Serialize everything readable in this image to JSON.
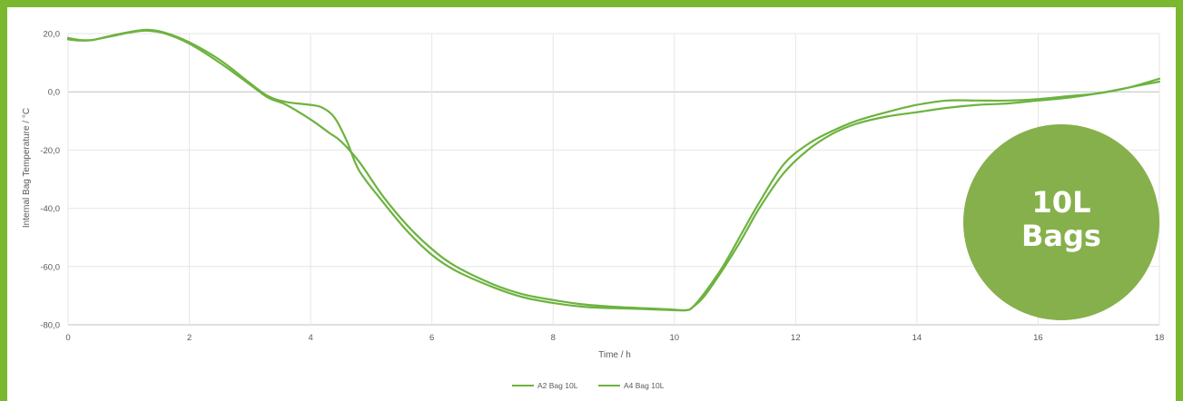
{
  "chart_data": {
    "type": "line",
    "title": "",
    "xlabel": "Time / h",
    "ylabel": "Internal Bag Temperature / °C",
    "xlim": [
      0,
      18
    ],
    "ylim": [
      -80,
      20
    ],
    "xticks": [
      0,
      2,
      4,
      6,
      8,
      10,
      12,
      14,
      16,
      18
    ],
    "xtick_labels": [
      "0",
      "2",
      "4",
      "6",
      "8",
      "10",
      "12",
      "14",
      "16",
      "18"
    ],
    "yticks": [
      20,
      0,
      -20,
      -40,
      -60,
      -80
    ],
    "ytick_labels": [
      "20,0",
      "0,0",
      "-20,0",
      "-40,0",
      "-60,0",
      "-80,0"
    ],
    "grid": true,
    "legend_position": "bottom-center",
    "line_color": "#6db33f",
    "series": [
      {
        "name": "A2 Bag 10L",
        "x": [
          0,
          0.2,
          0.4,
          0.7,
          1.0,
          1.3,
          1.6,
          2.0,
          2.5,
          3.0,
          3.3,
          3.6,
          4.0,
          4.3,
          4.5,
          4.8,
          5.2,
          5.6,
          6.0,
          6.4,
          7.0,
          7.5,
          8.0,
          8.5,
          9.0,
          9.5,
          10.0,
          10.2,
          10.3,
          10.5,
          10.8,
          11.1,
          11.4,
          11.8,
          12.2,
          12.6,
          13.0,
          13.5,
          14.0,
          14.5,
          15.0,
          15.5,
          16.0,
          16.5,
          17.0,
          17.5,
          18.0
        ],
        "y": [
          18.5,
          17.8,
          17.8,
          19.0,
          20.3,
          21.0,
          20.0,
          16.5,
          10.0,
          2.5,
          -2.0,
          -4.5,
          -9.5,
          -14.0,
          -17.0,
          -24.0,
          -36.0,
          -46.0,
          -54.0,
          -60.0,
          -66.0,
          -69.5,
          -71.5,
          -73.0,
          -73.8,
          -74.3,
          -74.8,
          -75.0,
          -74.0,
          -70.0,
          -61.0,
          -51.0,
          -40.0,
          -28.0,
          -20.0,
          -14.5,
          -11.0,
          -8.5,
          -7.0,
          -5.5,
          -4.5,
          -4.0,
          -3.0,
          -2.0,
          -0.5,
          1.5,
          3.5
        ]
      },
      {
        "name": "A4 Bag 10L",
        "x": [
          0,
          0.2,
          0.4,
          0.7,
          1.0,
          1.3,
          1.6,
          2.0,
          2.5,
          3.0,
          3.3,
          3.6,
          4.0,
          4.2,
          4.4,
          4.6,
          4.8,
          5.2,
          5.6,
          6.0,
          6.4,
          7.0,
          7.5,
          8.0,
          8.5,
          9.0,
          9.5,
          10.0,
          10.2,
          10.3,
          10.5,
          10.8,
          11.1,
          11.4,
          11.8,
          12.2,
          12.6,
          13.0,
          13.5,
          14.0,
          14.5,
          15.0,
          15.5,
          16.0,
          16.5,
          17.0,
          17.5,
          18.0
        ],
        "y": [
          18.0,
          17.6,
          17.8,
          19.2,
          20.5,
          21.3,
          20.3,
          17.0,
          11.0,
          3.0,
          -1.5,
          -3.5,
          -4.5,
          -5.5,
          -9.0,
          -17.0,
          -27.0,
          -38.0,
          -48.0,
          -56.0,
          -61.5,
          -67.0,
          -70.5,
          -72.5,
          -73.8,
          -74.3,
          -74.6,
          -75.0,
          -75.0,
          -74.0,
          -69.0,
          -60.0,
          -49.0,
          -38.0,
          -25.0,
          -18.0,
          -13.5,
          -10.0,
          -7.0,
          -4.5,
          -3.0,
          -3.0,
          -3.0,
          -2.5,
          -1.5,
          -0.5,
          1.5,
          4.5
        ]
      }
    ]
  },
  "badge": {
    "line1": "10L",
    "line2": "Bags",
    "color": "#86b04b"
  }
}
